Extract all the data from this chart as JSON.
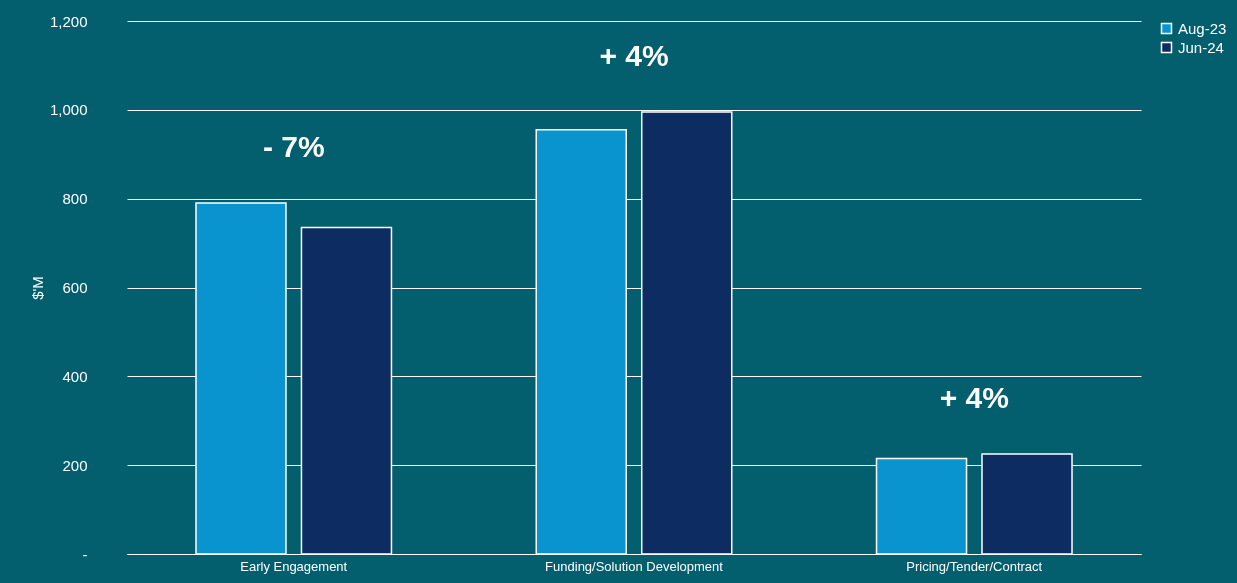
{
  "chart_data": {
    "type": "bar",
    "ylabel": "$'M",
    "categories": [
      "Early Engagement",
      "Funding/Solution Development",
      "Pricing/Tender/Contract"
    ],
    "series": [
      {
        "name": "Aug-23",
        "color": "#0a94cf",
        "values": [
          790,
          955,
          215
        ]
      },
      {
        "name": "Jun-24",
        "color": "#0c2c62",
        "values": [
          735,
          995,
          225
        ]
      }
    ],
    "ylim": [
      0,
      1200
    ],
    "yticks": [
      {
        "value": 0,
        "label": "-"
      },
      {
        "value": 200,
        "label": "200"
      },
      {
        "value": 400,
        "label": "400"
      },
      {
        "value": 600,
        "label": "600"
      },
      {
        "value": 800,
        "label": "800"
      },
      {
        "value": 1000,
        "label": "1,000"
      },
      {
        "value": 1200,
        "label": "1,200"
      }
    ],
    "grid": "y",
    "legend": "right",
    "annotations": [
      "- 7%",
      "+ 4%",
      "+ 4%"
    ]
  }
}
